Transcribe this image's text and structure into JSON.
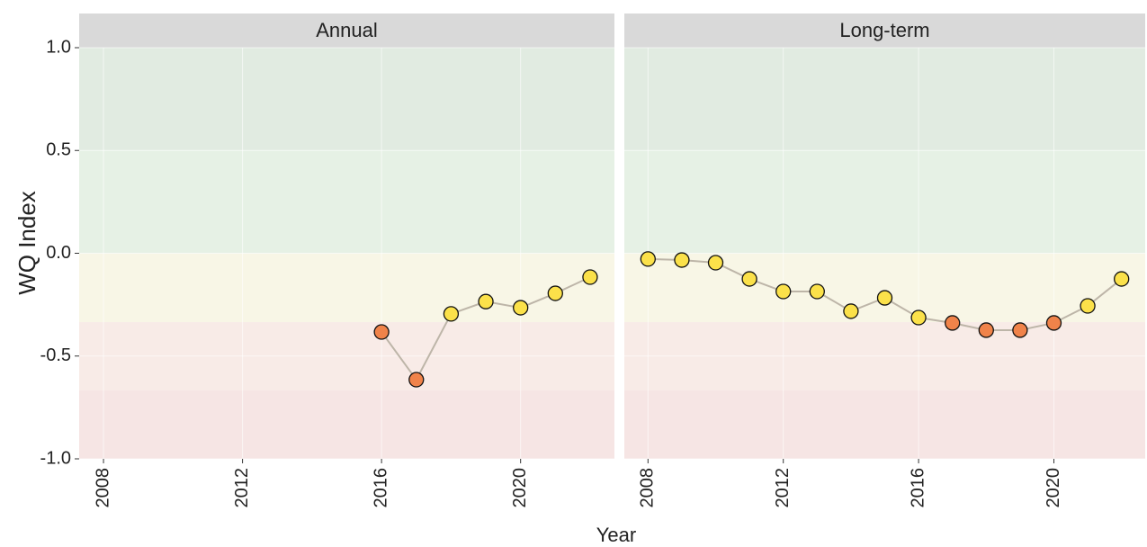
{
  "axis_labels": {
    "y": "WQ Index",
    "x": "Year"
  },
  "chart_data": [
    {
      "type": "line",
      "title": "Annual",
      "x": [
        2016,
        2017,
        2018,
        2019,
        2020,
        2021,
        2022
      ],
      "values": [
        -0.383,
        -0.615,
        -0.295,
        -0.235,
        -0.265,
        -0.195,
        -0.116
      ],
      "point_colors": [
        "#f0834a",
        "#f0834a",
        "#fbe14a",
        "#fbe14a",
        "#fbe14a",
        "#fbe14a",
        "#fbe14a"
      ],
      "line_color": "#bdb5a8",
      "xlim": [
        2007.3,
        2022.7
      ],
      "xticks": [
        2008,
        2012,
        2016,
        2020
      ],
      "ylim": [
        -1,
        1
      ],
      "yticks": [
        {
          "value": -1,
          "label": "-1.0"
        },
        {
          "value": -0.5,
          "label": "-0.5"
        },
        {
          "value": 0,
          "label": "0.0"
        },
        {
          "value": 0.5,
          "label": "0.5"
        },
        {
          "value": 1,
          "label": "1.0"
        }
      ],
      "bands": [
        {
          "from": 0.5,
          "to": 1,
          "color": "#e1ebe1"
        },
        {
          "from": 0,
          "to": 0.5,
          "color": "#e6f1e5"
        },
        {
          "from": -0.335,
          "to": 0,
          "color": "#f8f6e6"
        },
        {
          "from": -0.667,
          "to": -0.335,
          "color": "#f8ebe7"
        },
        {
          "from": -1,
          "to": -0.667,
          "color": "#f6e5e4"
        }
      ],
      "grid": true
    },
    {
      "type": "line",
      "title": "Long-term",
      "x": [
        2008,
        2009,
        2010,
        2011,
        2012,
        2013,
        2014,
        2015,
        2016,
        2017,
        2018,
        2019,
        2020,
        2021,
        2022
      ],
      "values": [
        -0.028,
        -0.033,
        -0.046,
        -0.125,
        -0.186,
        -0.186,
        -0.282,
        -0.217,
        -0.313,
        -0.339,
        -0.374,
        -0.374,
        -0.339,
        -0.256,
        -0.125
      ],
      "point_colors": [
        "#fbe14a",
        "#fbe14a",
        "#fbe14a",
        "#fbe14a",
        "#fbe14a",
        "#fbe14a",
        "#fbe14a",
        "#fbe14a",
        "#fbe14a",
        "#f0834a",
        "#f0834a",
        "#f0834a",
        "#f0834a",
        "#fbe14a",
        "#fbe14a"
      ],
      "line_color": "#bdb5a8",
      "xlim": [
        2007.3,
        2022.7
      ],
      "xticks": [
        2008,
        2012,
        2016,
        2020
      ],
      "ylim": [
        -1,
        1
      ],
      "bands": [
        {
          "from": 0.5,
          "to": 1,
          "color": "#e1ebe1"
        },
        {
          "from": 0,
          "to": 0.5,
          "color": "#e6f1e5"
        },
        {
          "from": -0.335,
          "to": 0,
          "color": "#f8f6e6"
        },
        {
          "from": -0.667,
          "to": -0.335,
          "color": "#f8ebe7"
        },
        {
          "from": -1,
          "to": -0.667,
          "color": "#f6e5e4"
        }
      ],
      "grid": true
    }
  ]
}
